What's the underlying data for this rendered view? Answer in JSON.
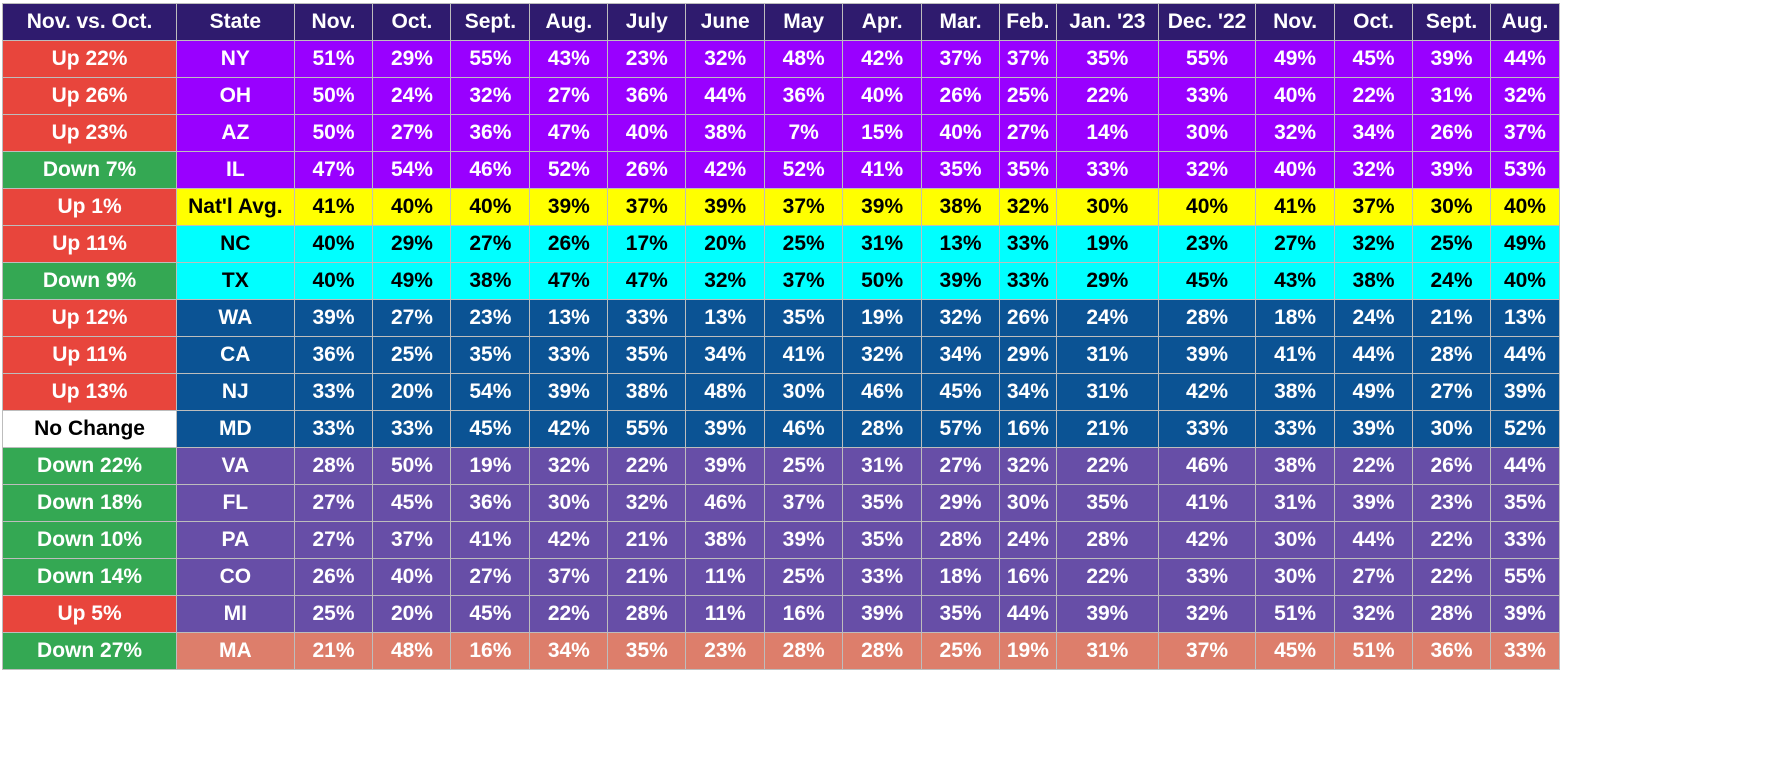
{
  "chart_data": {
    "type": "table",
    "columns": [
      "Nov. vs. Oct.",
      "State",
      "Nov.",
      "Oct.",
      "Sept.",
      "Aug.",
      "July",
      "June",
      "May",
      "Apr.",
      "Mar.",
      "Feb.",
      "Jan. '23",
      "Dec. '22",
      "Nov.",
      "Oct.",
      "Sept.",
      "Aug."
    ],
    "rows": [
      {
        "change": "Up 22%",
        "direction": "up",
        "state": "NY",
        "group": "purple",
        "values": [
          "51%",
          "29%",
          "55%",
          "43%",
          "23%",
          "32%",
          "48%",
          "42%",
          "37%",
          "37%",
          "35%",
          "55%",
          "49%",
          "45%",
          "39%",
          "44%"
        ]
      },
      {
        "change": "Up 26%",
        "direction": "up",
        "state": "OH",
        "group": "purple",
        "values": [
          "50%",
          "24%",
          "32%",
          "27%",
          "36%",
          "44%",
          "36%",
          "40%",
          "26%",
          "25%",
          "22%",
          "33%",
          "40%",
          "22%",
          "31%",
          "32%"
        ]
      },
      {
        "change": "Up 23%",
        "direction": "up",
        "state": "AZ",
        "group": "purple",
        "values": [
          "50%",
          "27%",
          "36%",
          "47%",
          "40%",
          "38%",
          "7%",
          "15%",
          "40%",
          "27%",
          "14%",
          "30%",
          "32%",
          "34%",
          "26%",
          "37%"
        ]
      },
      {
        "change": "Down 7%",
        "direction": "down",
        "state": "IL",
        "group": "purple",
        "values": [
          "47%",
          "54%",
          "46%",
          "52%",
          "26%",
          "42%",
          "52%",
          "41%",
          "35%",
          "35%",
          "33%",
          "32%",
          "40%",
          "32%",
          "39%",
          "53%"
        ]
      },
      {
        "change": "Up 1%",
        "direction": "up",
        "state": "Nat'l Avg.",
        "group": "yellow",
        "values": [
          "41%",
          "40%",
          "40%",
          "39%",
          "37%",
          "39%",
          "37%",
          "39%",
          "38%",
          "32%",
          "30%",
          "40%",
          "41%",
          "37%",
          "30%",
          "40%"
        ]
      },
      {
        "change": "Up 11%",
        "direction": "up",
        "state": "NC",
        "group": "cyan",
        "values": [
          "40%",
          "29%",
          "27%",
          "26%",
          "17%",
          "20%",
          "25%",
          "31%",
          "13%",
          "33%",
          "19%",
          "23%",
          "27%",
          "32%",
          "25%",
          "49%"
        ]
      },
      {
        "change": "Down 9%",
        "direction": "down",
        "state": "TX",
        "group": "cyan",
        "values": [
          "40%",
          "49%",
          "38%",
          "47%",
          "47%",
          "32%",
          "37%",
          "50%",
          "39%",
          "33%",
          "29%",
          "45%",
          "43%",
          "38%",
          "24%",
          "40%"
        ]
      },
      {
        "change": "Up 12%",
        "direction": "up",
        "state": "WA",
        "group": "blue",
        "values": [
          "39%",
          "27%",
          "23%",
          "13%",
          "33%",
          "13%",
          "35%",
          "19%",
          "32%",
          "26%",
          "24%",
          "28%",
          "18%",
          "24%",
          "21%",
          "13%"
        ]
      },
      {
        "change": "Up 11%",
        "direction": "up",
        "state": "CA",
        "group": "blue",
        "values": [
          "36%",
          "25%",
          "35%",
          "33%",
          "35%",
          "34%",
          "41%",
          "32%",
          "34%",
          "29%",
          "31%",
          "39%",
          "41%",
          "44%",
          "28%",
          "44%"
        ]
      },
      {
        "change": "Up 13%",
        "direction": "up",
        "state": "NJ",
        "group": "blue",
        "values": [
          "33%",
          "20%",
          "54%",
          "39%",
          "38%",
          "48%",
          "30%",
          "46%",
          "45%",
          "34%",
          "31%",
          "42%",
          "38%",
          "49%",
          "27%",
          "39%"
        ]
      },
      {
        "change": "No Change",
        "direction": "none",
        "state": "MD",
        "group": "blue",
        "values": [
          "33%",
          "33%",
          "45%",
          "42%",
          "55%",
          "39%",
          "46%",
          "28%",
          "57%",
          "16%",
          "21%",
          "33%",
          "33%",
          "39%",
          "30%",
          "52%"
        ]
      },
      {
        "change": "Down 22%",
        "direction": "down",
        "state": "VA",
        "group": "violet",
        "values": [
          "28%",
          "50%",
          "19%",
          "32%",
          "22%",
          "39%",
          "25%",
          "31%",
          "27%",
          "32%",
          "22%",
          "46%",
          "38%",
          "22%",
          "26%",
          "44%"
        ]
      },
      {
        "change": "Down 18%",
        "direction": "down",
        "state": "FL",
        "group": "violet",
        "values": [
          "27%",
          "45%",
          "36%",
          "30%",
          "32%",
          "46%",
          "37%",
          "35%",
          "29%",
          "30%",
          "35%",
          "41%",
          "31%",
          "39%",
          "23%",
          "35%"
        ]
      },
      {
        "change": "Down 10%",
        "direction": "down",
        "state": "PA",
        "group": "violet",
        "values": [
          "27%",
          "37%",
          "41%",
          "42%",
          "21%",
          "38%",
          "39%",
          "35%",
          "28%",
          "24%",
          "28%",
          "42%",
          "30%",
          "44%",
          "22%",
          "33%"
        ]
      },
      {
        "change": "Down 14%",
        "direction": "down",
        "state": "CO",
        "group": "violet",
        "values": [
          "26%",
          "40%",
          "27%",
          "37%",
          "21%",
          "11%",
          "25%",
          "33%",
          "18%",
          "16%",
          "22%",
          "33%",
          "30%",
          "27%",
          "22%",
          "55%"
        ]
      },
      {
        "change": "Up 5%",
        "direction": "up",
        "state": "MI",
        "group": "violet",
        "values": [
          "25%",
          "20%",
          "45%",
          "22%",
          "28%",
          "11%",
          "16%",
          "39%",
          "35%",
          "44%",
          "39%",
          "32%",
          "51%",
          "32%",
          "28%",
          "39%"
        ]
      },
      {
        "change": "Down 27%",
        "direction": "down",
        "state": "MA",
        "group": "salmon",
        "values": [
          "21%",
          "48%",
          "16%",
          "34%",
          "35%",
          "23%",
          "28%",
          "28%",
          "25%",
          "19%",
          "31%",
          "37%",
          "45%",
          "51%",
          "36%",
          "33%"
        ]
      }
    ]
  },
  "colors": {
    "header_bg": "#2f1b6e",
    "header_text": "#ffffff",
    "up": "#e8453c",
    "down": "#34a853",
    "none": "#ffffff",
    "groups": {
      "purple": {
        "bg": "#9900ff",
        "fg": "#ffffff"
      },
      "yellow": {
        "bg": "#ffff00",
        "fg": "#000000"
      },
      "cyan": {
        "bg": "#00ffff",
        "fg": "#000000"
      },
      "blue": {
        "bg": "#0b5394",
        "fg": "#ffffff"
      },
      "violet": {
        "bg": "#674ea7",
        "fg": "#ffffff"
      },
      "salmon": {
        "bg": "#dd7e6b",
        "fg": "#ffffff"
      }
    }
  }
}
